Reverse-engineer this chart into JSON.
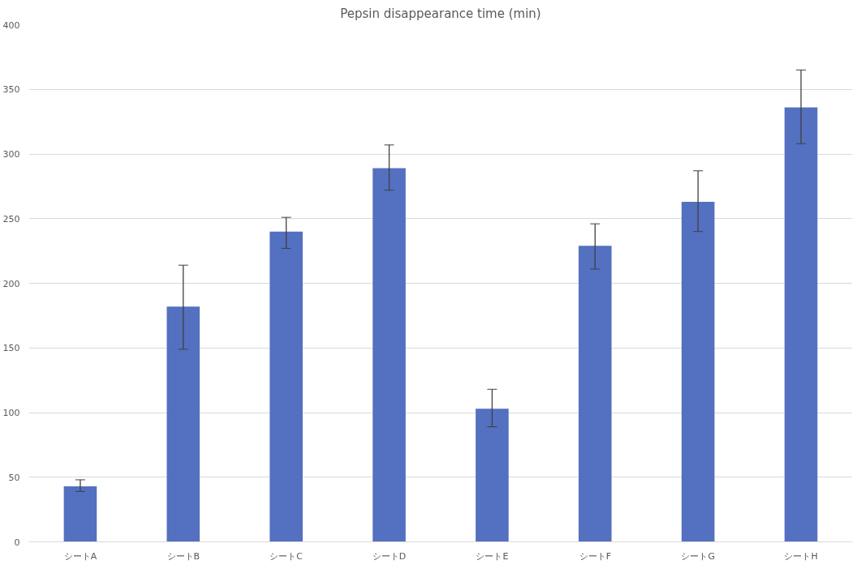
{
  "chart_data": {
    "type": "bar",
    "title": "Pepsin disappearance time (min)",
    "categories": [
      "シートA",
      "シートB",
      "シートC",
      "シートD",
      "シートE",
      "シートF",
      "シートG",
      "シートH"
    ],
    "values": [
      43,
      182,
      240,
      289,
      103,
      229,
      263,
      336
    ],
    "errors": [
      [
        39,
        48
      ],
      [
        149,
        214
      ],
      [
        227,
        251
      ],
      [
        272,
        307
      ],
      [
        89,
        118
      ],
      [
        211,
        246
      ],
      [
        240,
        287
      ],
      [
        308,
        365
      ]
    ],
    "color": "#5470c0",
    "ylim": [
      0,
      400
    ],
    "yticks": [
      0,
      50,
      100,
      150,
      200,
      250,
      300,
      350,
      400
    ],
    "grid": "y"
  }
}
